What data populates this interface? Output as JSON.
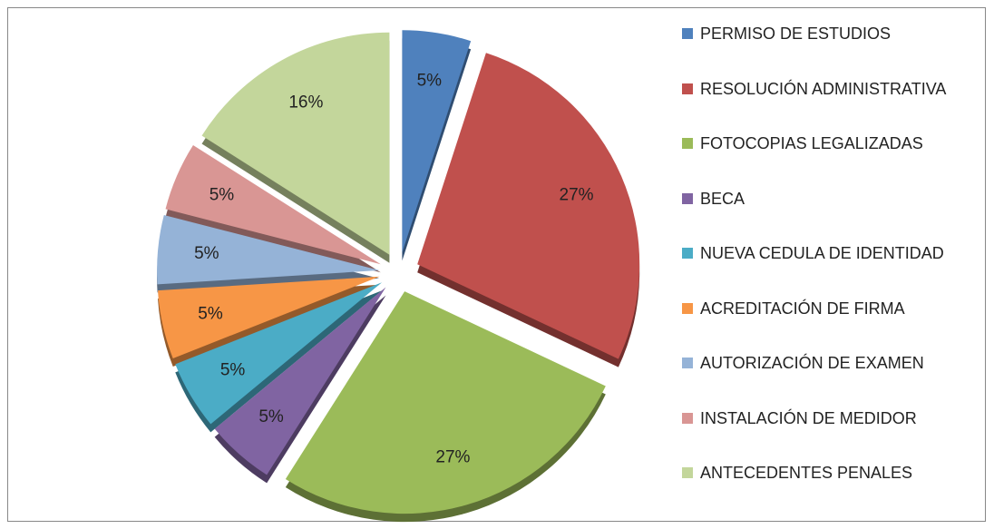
{
  "chart_data": {
    "type": "pie",
    "categories": [
      "PERMISO DE ESTUDIOS",
      "RESOLUCIÓN ADMINISTRATIVA",
      "FOTOCOPIAS LEGALIZADAS",
      "BECA",
      "NUEVA CEDULA DE IDENTIDAD",
      "ACREDITACIÓN DE FIRMA",
      "AUTORIZACIÓN DE EXAMEN",
      "INSTALACIÓN DE MEDIDOR",
      "ANTECEDENTES PENALES"
    ],
    "values": [
      5,
      27,
      27,
      5,
      5,
      5,
      5,
      5,
      16
    ],
    "value_labels": [
      "5%",
      "27%",
      "27%",
      "5%",
      "5%",
      "5%",
      "5%",
      "5%",
      "16%"
    ],
    "colors": [
      "#4f81bd",
      "#c0504d",
      "#9bbb59",
      "#8064a2",
      "#4bacc6",
      "#f79646",
      "#95b3d7",
      "#d99694",
      "#c3d69b"
    ],
    "legend": "right"
  }
}
